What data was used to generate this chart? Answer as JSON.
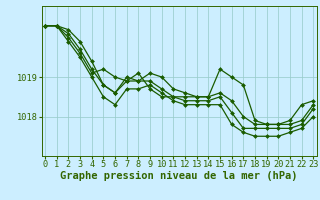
{
  "hours": [
    0,
    1,
    2,
    3,
    4,
    5,
    6,
    7,
    8,
    9,
    10,
    11,
    12,
    13,
    14,
    15,
    16,
    17,
    18,
    19,
    20,
    21,
    22,
    23
  ],
  "series": [
    [
      1020.3,
      1020.3,
      1020.2,
      1019.9,
      1019.4,
      1018.8,
      1018.6,
      1019.0,
      1018.9,
      1019.1,
      1019.0,
      1018.7,
      1018.6,
      1018.5,
      1018.5,
      1018.6,
      1018.4,
      1018.0,
      1017.8,
      1017.8,
      1017.8,
      1017.8,
      1017.9,
      1018.3
    ],
    [
      1020.3,
      1020.3,
      1020.1,
      1019.7,
      1019.2,
      1018.8,
      1018.6,
      1018.9,
      1018.9,
      1018.9,
      1018.7,
      1018.5,
      1018.4,
      1018.4,
      1018.4,
      1018.5,
      1018.1,
      1017.7,
      1017.7,
      1017.7,
      1017.7,
      1017.7,
      1017.8,
      1018.2
    ],
    [
      1020.3,
      1020.3,
      1019.9,
      1019.5,
      1019.0,
      1018.5,
      1018.3,
      1018.7,
      1018.7,
      1018.8,
      1018.6,
      1018.4,
      1018.3,
      1018.3,
      1018.3,
      1018.3,
      1017.8,
      1017.6,
      1017.5,
      1017.5,
      1017.5,
      1017.6,
      1017.7,
      1018.0
    ],
    [
      1020.3,
      1020.3,
      1020.0,
      1019.6,
      1019.1,
      1019.2,
      1019.0,
      1018.9,
      1019.1,
      1018.7,
      1018.5,
      1018.5,
      1018.5,
      1018.5,
      1018.5,
      1019.2,
      1019.0,
      1018.8,
      1017.9,
      1017.8,
      1017.8,
      1017.9,
      1018.3,
      1018.4
    ]
  ],
  "line_color": "#1a5c00",
  "marker_color": "#1a5c00",
  "bg_color": "#cceeff",
  "grid_color": "#99cccc",
  "axis_color": "#336600",
  "ylabel_ticks": [
    1018,
    1019
  ],
  "ylim": [
    1017.0,
    1020.8
  ],
  "xlabel": "Graphe pression niveau de la mer (hPa)",
  "xlabel_fontsize": 7.5,
  "tick_fontsize": 6.2
}
